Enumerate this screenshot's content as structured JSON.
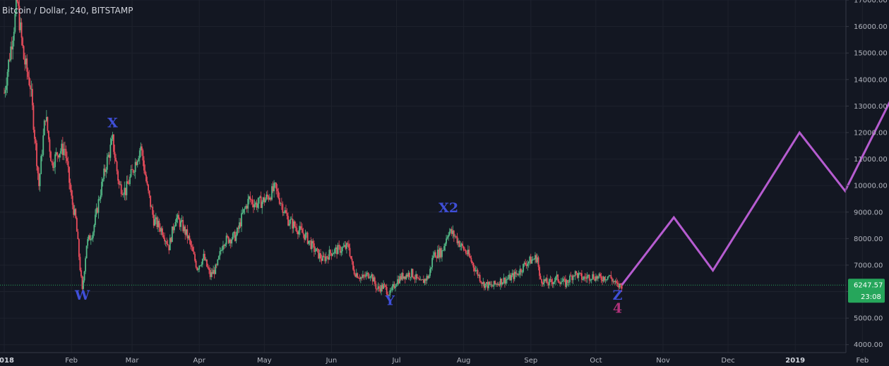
{
  "header": {
    "title": "Bitcoin / Dollar, 240, BITSTAMP"
  },
  "colors": {
    "background": "#131722",
    "grid": "#1e222d",
    "axis_text": "#b2b5be",
    "up_candle": "#53b987",
    "down_candle": "#eb4d5c",
    "wave_label": "#3f4fd8",
    "wave_label_alt": "#b0327a",
    "projection": "#b65cd0",
    "price_badge": "#26a65b",
    "price_line": "#26a65b"
  },
  "price_badge": {
    "price": "6247.57",
    "countdown": "23:08",
    "value": 6247.57
  },
  "chart_data": {
    "type": "line",
    "title": "Bitcoin / Dollar, 240, BITSTAMP",
    "xlabel": "",
    "ylabel": "",
    "ylim": [
      3700,
      17000
    ],
    "x_range": [
      "2018-01-01",
      "2019-01-27"
    ],
    "grid": true,
    "y_ticks": [
      "4000.00",
      "5000.00",
      "6000.00",
      "7000.00",
      "8000.00",
      "9000.00",
      "10000.00",
      "11000.00",
      "12000.00",
      "13000.00",
      "14000.00",
      "15000.00",
      "16000.00",
      "17000.00"
    ],
    "y_tick_values": [
      4000,
      5000,
      6000,
      7000,
      8000,
      9000,
      10000,
      11000,
      12000,
      13000,
      14000,
      15000,
      16000,
      17000
    ],
    "x_ticks": [
      {
        "label": "2018",
        "date": "2018-01-01",
        "bold": true
      },
      {
        "label": "Feb",
        "date": "2018-02-01"
      },
      {
        "label": "Mar",
        "date": "2018-03-01"
      },
      {
        "label": "Apr",
        "date": "2018-04-01"
      },
      {
        "label": "May",
        "date": "2018-05-01"
      },
      {
        "label": "Jun",
        "date": "2018-06-01"
      },
      {
        "label": "Jul",
        "date": "2018-07-01"
      },
      {
        "label": "Aug",
        "date": "2018-08-01"
      },
      {
        "label": "Sep",
        "date": "2018-09-01"
      },
      {
        "label": "Oct",
        "date": "2018-10-01"
      },
      {
        "label": "Nov",
        "date": "2018-11-01"
      },
      {
        "label": "Dec",
        "date": "2018-12-01"
      },
      {
        "label": "2019",
        "date": "2019-01-01",
        "bold": true
      },
      {
        "label": "Feb",
        "date": "2019-02-01"
      }
    ],
    "series": [
      {
        "type": "candlestick",
        "points": [
          {
            "x": "2018-01-01",
            "y": 13500
          },
          {
            "x": "2018-01-04",
            "y": 15200
          },
          {
            "x": "2018-01-07",
            "y": 16900
          },
          {
            "x": "2018-01-10",
            "y": 14800
          },
          {
            "x": "2018-01-13",
            "y": 13800
          },
          {
            "x": "2018-01-16",
            "y": 11000
          },
          {
            "x": "2018-01-17",
            "y": 10000
          },
          {
            "x": "2018-01-20",
            "y": 12700
          },
          {
            "x": "2018-01-23",
            "y": 10800
          },
          {
            "x": "2018-01-26",
            "y": 11300
          },
          {
            "x": "2018-01-29",
            "y": 11400
          },
          {
            "x": "2018-02-01",
            "y": 9500
          },
          {
            "x": "2018-02-03",
            "y": 8700
          },
          {
            "x": "2018-02-06",
            "y": 6000
          },
          {
            "x": "2018-02-08",
            "y": 7800
          },
          {
            "x": "2018-02-11",
            "y": 8300
          },
          {
            "x": "2018-02-14",
            "y": 9600
          },
          {
            "x": "2018-02-17",
            "y": 10800
          },
          {
            "x": "2018-02-20",
            "y": 11700
          },
          {
            "x": "2018-02-23",
            "y": 10000
          },
          {
            "x": "2018-02-26",
            "y": 9800
          },
          {
            "x": "2018-03-01",
            "y": 10500
          },
          {
            "x": "2018-03-05",
            "y": 11500
          },
          {
            "x": "2018-03-08",
            "y": 9900
          },
          {
            "x": "2018-03-11",
            "y": 8700
          },
          {
            "x": "2018-03-15",
            "y": 8300
          },
          {
            "x": "2018-03-18",
            "y": 7700
          },
          {
            "x": "2018-03-21",
            "y": 8800
          },
          {
            "x": "2018-03-24",
            "y": 8500
          },
          {
            "x": "2018-03-27",
            "y": 8000
          },
          {
            "x": "2018-03-31",
            "y": 6900
          },
          {
            "x": "2018-04-03",
            "y": 7300
          },
          {
            "x": "2018-04-06",
            "y": 6600
          },
          {
            "x": "2018-04-09",
            "y": 6900
          },
          {
            "x": "2018-04-12",
            "y": 7900
          },
          {
            "x": "2018-04-15",
            "y": 8000
          },
          {
            "x": "2018-04-18",
            "y": 8100
          },
          {
            "x": "2018-04-21",
            "y": 8900
          },
          {
            "x": "2018-04-24",
            "y": 9500
          },
          {
            "x": "2018-04-27",
            "y": 9300
          },
          {
            "x": "2018-04-30",
            "y": 9400
          },
          {
            "x": "2018-05-03",
            "y": 9600
          },
          {
            "x": "2018-05-06",
            "y": 9900
          },
          {
            "x": "2018-05-09",
            "y": 9300
          },
          {
            "x": "2018-05-12",
            "y": 8700
          },
          {
            "x": "2018-05-16",
            "y": 8400
          },
          {
            "x": "2018-05-20",
            "y": 8100
          },
          {
            "x": "2018-05-24",
            "y": 7600
          },
          {
            "x": "2018-05-28",
            "y": 7200
          },
          {
            "x": "2018-06-01",
            "y": 7500
          },
          {
            "x": "2018-06-05",
            "y": 7600
          },
          {
            "x": "2018-06-09",
            "y": 7700
          },
          {
            "x": "2018-06-11",
            "y": 6800
          },
          {
            "x": "2018-06-15",
            "y": 6500
          },
          {
            "x": "2018-06-19",
            "y": 6700
          },
          {
            "x": "2018-06-22",
            "y": 6100
          },
          {
            "x": "2018-06-25",
            "y": 6200
          },
          {
            "x": "2018-06-28",
            "y": 5900
          },
          {
            "x": "2018-07-01",
            "y": 6400
          },
          {
            "x": "2018-07-04",
            "y": 6600
          },
          {
            "x": "2018-07-08",
            "y": 6700
          },
          {
            "x": "2018-07-12",
            "y": 6300
          },
          {
            "x": "2018-07-16",
            "y": 6600
          },
          {
            "x": "2018-07-18",
            "y": 7400
          },
          {
            "x": "2018-07-22",
            "y": 7500
          },
          {
            "x": "2018-07-25",
            "y": 8300
          },
          {
            "x": "2018-07-28",
            "y": 8100
          },
          {
            "x": "2018-07-31",
            "y": 7700
          },
          {
            "x": "2018-08-03",
            "y": 7400
          },
          {
            "x": "2018-08-06",
            "y": 6900
          },
          {
            "x": "2018-08-10",
            "y": 6300
          },
          {
            "x": "2018-08-14",
            "y": 6200
          },
          {
            "x": "2018-08-18",
            "y": 6400
          },
          {
            "x": "2018-08-22",
            "y": 6500
          },
          {
            "x": "2018-08-26",
            "y": 6700
          },
          {
            "x": "2018-08-30",
            "y": 7100
          },
          {
            "x": "2018-09-04",
            "y": 7300
          },
          {
            "x": "2018-09-05",
            "y": 6500
          },
          {
            "x": "2018-09-09",
            "y": 6300
          },
          {
            "x": "2018-09-13",
            "y": 6500
          },
          {
            "x": "2018-09-17",
            "y": 6300
          },
          {
            "x": "2018-09-21",
            "y": 6700
          },
          {
            "x": "2018-09-25",
            "y": 6500
          },
          {
            "x": "2018-09-29",
            "y": 6600
          },
          {
            "x": "2018-10-03",
            "y": 6500
          },
          {
            "x": "2018-10-07",
            "y": 6600
          },
          {
            "x": "2018-10-10",
            "y": 6300
          },
          {
            "x": "2018-10-11",
            "y": 6200
          },
          {
            "x": "2018-10-13",
            "y": 6250
          }
        ]
      },
      {
        "name": "",
        "type": "line",
        "points": [
          {
            "x": "2018-10-13",
            "y": 6250
          },
          {
            "x": "2018-11-06",
            "y": 8800
          },
          {
            "x": "2018-11-24",
            "y": 6800
          },
          {
            "x": "2019-01-03",
            "y": 12000
          },
          {
            "x": "2019-01-24",
            "y": 9800
          },
          {
            "x": "2019-02-28",
            "y": 15500
          }
        ]
      }
    ],
    "annotations": [
      {
        "text": "X",
        "x": "2018-02-20",
        "y": 12200
      },
      {
        "text": "W",
        "x": "2018-02-06",
        "y": 5700
      },
      {
        "text": "X2",
        "x": "2018-07-25",
        "y": 9000
      },
      {
        "text": "Y",
        "x": "2018-06-28",
        "y": 5500
      },
      {
        "text": "Z",
        "x": "2018-10-11",
        "y": 5700
      },
      {
        "text": "4",
        "x": "2018-10-11",
        "y": 5200
      }
    ]
  }
}
